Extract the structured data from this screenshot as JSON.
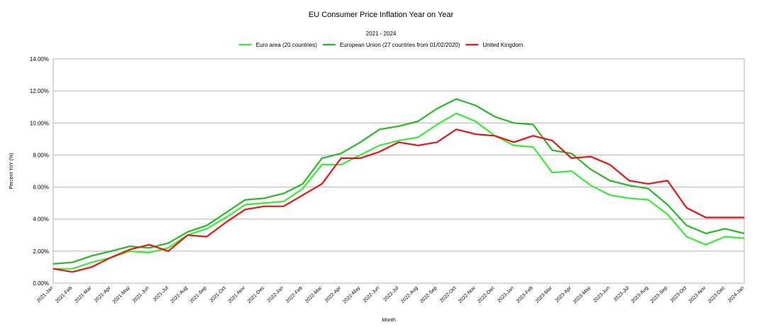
{
  "chart_data": {
    "type": "line",
    "title": "EU Consumer Price Inflation Year on Year",
    "subtitle": "2021 - 2024",
    "xlabel": "Month",
    "ylabel": "Percent YoY (%)",
    "ylim": [
      0,
      14
    ],
    "yticks": [
      "0.00%",
      "2.00%",
      "4.00%",
      "6.00%",
      "8.00%",
      "10.00%",
      "12.00%",
      "14.00%"
    ],
    "grid": true,
    "legend_position": "top-center",
    "categories": [
      "2021-Jan",
      "2021-Feb",
      "2021-Mar",
      "2021-Apr",
      "2021-May",
      "2021-Jun",
      "2021-Jul",
      "2021-Aug",
      "2021-Sep",
      "2021-Oct",
      "2021-Nov",
      "2021-Dec",
      "2022-Jan",
      "2022-Feb",
      "2022-Mar",
      "2022-Apr",
      "2022-May",
      "2022-Jun",
      "2022-Jul",
      "2022-Aug",
      "2022-Sep",
      "2022-Oct",
      "2022-Nov",
      "2022-Dec",
      "2023-Jan",
      "2023-Feb",
      "2023-Mar",
      "2023-Apr",
      "2023-May",
      "2023-Jun",
      "2023-Jul",
      "2023-Aug",
      "2023-Sep",
      "2023-Oct",
      "2023-Nov",
      "2023-Dec",
      "2024-Jan"
    ],
    "series": [
      {
        "name": "Euro area (20 countries)",
        "color": "#33ee33",
        "values": [
          0.9,
          0.9,
          1.3,
          1.6,
          2.0,
          1.9,
          2.2,
          3.0,
          3.4,
          4.1,
          4.9,
          5.0,
          5.1,
          5.9,
          7.4,
          7.4,
          8.0,
          8.6,
          8.9,
          9.1,
          9.9,
          10.6,
          10.1,
          9.2,
          8.6,
          8.5,
          6.9,
          7.0,
          6.1,
          5.5,
          5.3,
          5.2,
          4.3,
          2.9,
          2.4,
          2.9,
          2.8
        ]
      },
      {
        "name": "European Union (27 countries from 01/02/2020)",
        "color": "#22bb22",
        "values": [
          1.2,
          1.3,
          1.7,
          2.0,
          2.3,
          2.2,
          2.5,
          3.2,
          3.6,
          4.4,
          5.2,
          5.3,
          5.6,
          6.2,
          7.8,
          8.1,
          8.8,
          9.6,
          9.8,
          10.1,
          10.9,
          11.5,
          11.1,
          10.4,
          10.0,
          9.9,
          8.3,
          8.1,
          7.1,
          6.4,
          6.1,
          5.9,
          4.9,
          3.6,
          3.1,
          3.4,
          3.1
        ]
      },
      {
        "name": "United Kingdom",
        "color": "#ee1111",
        "values": [
          0.9,
          0.7,
          1.0,
          1.6,
          2.1,
          2.4,
          2.0,
          3.0,
          2.9,
          3.8,
          4.6,
          4.8,
          4.8,
          5.5,
          6.2,
          7.8,
          7.8,
          8.2,
          8.8,
          8.6,
          8.8,
          9.6,
          9.3,
          9.2,
          8.8,
          9.2,
          8.9,
          7.8,
          7.9,
          7.4,
          6.4,
          6.2,
          6.4,
          4.7,
          4.1,
          4.1,
          4.1
        ]
      }
    ]
  }
}
